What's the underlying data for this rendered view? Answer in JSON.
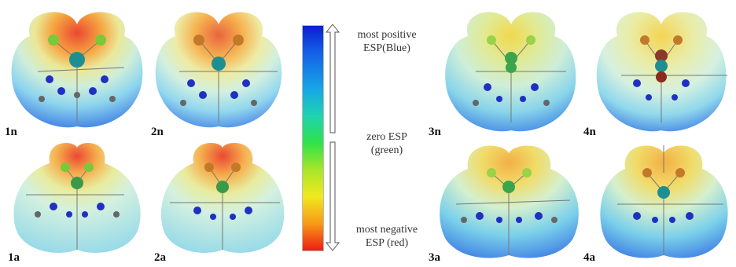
{
  "panels": [
    {
      "id": "1n",
      "label": "1n"
    },
    {
      "id": "2n",
      "label": "2n"
    },
    {
      "id": "1a",
      "label": "1a"
    },
    {
      "id": "2a",
      "label": "2a"
    },
    {
      "id": "3n",
      "label": "3n"
    },
    {
      "id": "4n",
      "label": "4n"
    },
    {
      "id": "3a",
      "label": "3a"
    },
    {
      "id": "4a",
      "label": "4a"
    }
  ],
  "scale": {
    "top_line1": "most positive",
    "top_line2": "ESP(Blue)",
    "mid_line1": "zero ESP",
    "mid_line2": "(green)",
    "bottom_line1": "most negative",
    "bottom_line2": "ESP (red)"
  },
  "colors": {
    "negative": "#ee1d12",
    "zero": "#2fe24a",
    "positive": "#0a1fd0"
  }
}
